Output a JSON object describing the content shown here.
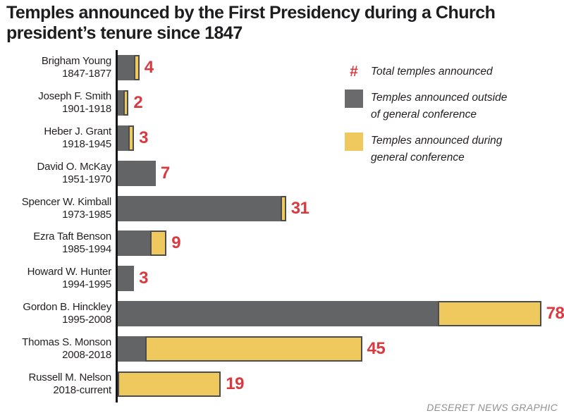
{
  "title": "Temples announced by the First Presidency during a Church president’s tenure since 1847",
  "legend": {
    "total_symbol": "#",
    "total_label": "Total temples announced",
    "outside_line1": "Temples announced outside",
    "outside_line2": "of general conference",
    "during_line1": "Temples announced during",
    "during_line2": "general conference"
  },
  "credit": "DESERET NEWS GRAPHIC",
  "colors": {
    "outside_bar": "#636466",
    "during_bar": "#efc85e",
    "bar_outline": "#4b4c4e",
    "total_number": "#d93a3f",
    "axis": "#161616",
    "credit_text": "#8f9194"
  },
  "chart_data": {
    "type": "bar",
    "orientation": "horizontal",
    "title": "Temples announced by the First Presidency during a Church president’s tenure since 1847",
    "unit": "temples",
    "value_axis_range": [
      0,
      78
    ],
    "grid": false,
    "legend_position": "top-right",
    "stacked": true,
    "series_names": [
      "Temples announced outside of general conference",
      "Temples announced during general conference"
    ],
    "rows": [
      {
        "president": "Brigham Young",
        "years": "1847-1877",
        "outside": 3,
        "during": 1,
        "total": 4
      },
      {
        "president": "Joseph F. Smith",
        "years": "1901-1918",
        "outside": 1,
        "during": 1,
        "total": 2
      },
      {
        "president": "Heber J. Grant",
        "years": "1918-1945",
        "outside": 2,
        "during": 1,
        "total": 3
      },
      {
        "president": "David O. McKay",
        "years": "1951-1970",
        "outside": 7,
        "during": 0,
        "total": 7
      },
      {
        "president": "Spencer W. Kimball",
        "years": "1973-1985",
        "outside": 30,
        "during": 1,
        "total": 31
      },
      {
        "president": "Ezra Taft Benson",
        "years": "1985-1994",
        "outside": 6,
        "during": 3,
        "total": 9
      },
      {
        "president": "Howard W. Hunter",
        "years": "1994-1995",
        "outside": 3,
        "during": 0,
        "total": 3
      },
      {
        "president": "Gordon B. Hinckley",
        "years": "1995-2008",
        "outside": 59,
        "during": 19,
        "total": 78
      },
      {
        "president": "Thomas S. Monson",
        "years": "2008-2018",
        "outside": 5,
        "during": 40,
        "total": 45
      },
      {
        "president": "Russell M. Nelson",
        "years": "2018-current",
        "outside": 0,
        "during": 19,
        "total": 19
      }
    ]
  }
}
